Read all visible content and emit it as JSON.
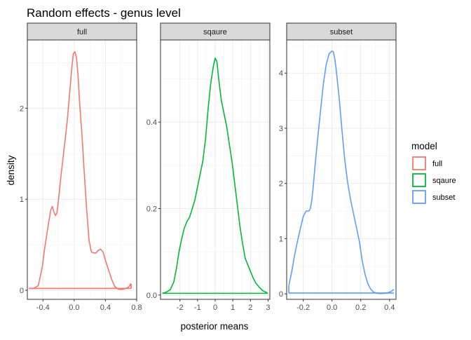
{
  "chart_data": {
    "type": "line",
    "title": "Random effects - genus level",
    "xlabel": "posterior means",
    "ylabel": "density",
    "legend": {
      "title": "model",
      "placement": "right",
      "entries": [
        {
          "name": "full",
          "color": "#F8766D"
        },
        {
          "name": "sqaure",
          "color": "#00BA38"
        },
        {
          "name": "subset",
          "color": "#619CFF"
        }
      ]
    },
    "grid": true,
    "facets": [
      {
        "strip": "full",
        "color": "#F8766D",
        "xlim": [
          -0.6,
          0.8
        ],
        "ylim": [
          -0.1,
          2.75
        ],
        "xticks": [
          -0.4,
          0.0,
          0.4,
          0.8
        ],
        "xtick_labels": [
          "-0.4",
          "0.0",
          "0.4",
          "0.8"
        ],
        "yticks": [
          0,
          1,
          2
        ],
        "ytick_labels": [
          "0",
          "1",
          "2"
        ],
        "x": [
          -0.58,
          -0.52,
          -0.46,
          -0.41,
          -0.38,
          -0.35,
          -0.32,
          -0.3,
          -0.28,
          -0.26,
          -0.24,
          -0.22,
          -0.2,
          -0.17,
          -0.13,
          -0.09,
          -0.06,
          -0.03,
          -0.01,
          0.01,
          0.03,
          0.05,
          0.07,
          0.1,
          0.13,
          0.16,
          0.19,
          0.22,
          0.25,
          0.28,
          0.31,
          0.34,
          0.37,
          0.4,
          0.44,
          0.48,
          0.52,
          0.57,
          0.62,
          0.66,
          0.69,
          0.71,
          0.72,
          0.73
        ],
        "y": [
          0.02,
          0.02,
          0.05,
          0.25,
          0.45,
          0.62,
          0.78,
          0.88,
          0.92,
          0.86,
          0.82,
          0.85,
          1.0,
          1.25,
          1.55,
          1.85,
          2.15,
          2.45,
          2.6,
          2.62,
          2.55,
          2.35,
          2.05,
          1.7,
          1.28,
          0.88,
          0.55,
          0.42,
          0.41,
          0.41,
          0.44,
          0.45,
          0.42,
          0.33,
          0.22,
          0.12,
          0.04,
          0.01,
          0.01,
          0.02,
          0.03,
          0.05,
          0.07,
          0.03
        ],
        "segments": [
          [
            -0.58,
            0.02,
            0.73,
            0.02
          ],
          [
            0.73,
            0.02,
            0.73,
            0.07
          ]
        ]
      },
      {
        "strip": "sqaure",
        "color": "#00BA38",
        "xlim": [
          -3.1,
          3.1
        ],
        "ylim": [
          -0.01,
          0.59
        ],
        "xticks": [
          -2,
          -1,
          0,
          1,
          2,
          3
        ],
        "xtick_labels": [
          "-2",
          "-1",
          "0",
          "1",
          "2",
          "3"
        ],
        "yticks": [
          0.0,
          0.2,
          0.4
        ],
        "ytick_labels": [
          "0.0",
          "0.2",
          "0.4"
        ],
        "x": [
          -3.0,
          -2.8,
          -2.55,
          -2.35,
          -2.2,
          -2.05,
          -1.9,
          -1.75,
          -1.6,
          -1.45,
          -1.3,
          -1.15,
          -1.0,
          -0.85,
          -0.7,
          -0.55,
          -0.4,
          -0.25,
          -0.1,
          0.0,
          0.1,
          0.2,
          0.35,
          0.5,
          0.65,
          0.8,
          0.95,
          1.1,
          1.25,
          1.4,
          1.55,
          1.7,
          1.85,
          2.0,
          2.15,
          2.3,
          2.5,
          2.7,
          2.9,
          2.98
        ],
        "y": [
          0.004,
          0.006,
          0.012,
          0.03,
          0.06,
          0.1,
          0.13,
          0.155,
          0.17,
          0.18,
          0.2,
          0.22,
          0.25,
          0.28,
          0.31,
          0.36,
          0.43,
          0.49,
          0.53,
          0.548,
          0.54,
          0.5,
          0.45,
          0.42,
          0.39,
          0.35,
          0.31,
          0.26,
          0.21,
          0.16,
          0.12,
          0.085,
          0.07,
          0.055,
          0.04,
          0.028,
          0.018,
          0.01,
          0.006,
          0.004
        ],
        "segments": [
          [
            -3.0,
            0.004,
            2.98,
            0.004
          ]
        ]
      },
      {
        "strip": "subset",
        "color": "#619CFF",
        "xlim": [
          -0.315,
          0.445
        ],
        "ylim": [
          -0.1,
          4.6
        ],
        "xticks": [
          -0.2,
          0.0,
          0.2,
          0.4
        ],
        "xtick_labels": [
          "-0.2",
          "0.0",
          "0.2",
          "0.4"
        ],
        "yticks": [
          0,
          1,
          2,
          3,
          4
        ],
        "ytick_labels": [
          "0",
          "1",
          "2",
          "3",
          "4"
        ],
        "x": [
          -0.3,
          -0.28,
          -0.26,
          -0.24,
          -0.22,
          -0.2,
          -0.18,
          -0.16,
          -0.15,
          -0.14,
          -0.13,
          -0.12,
          -0.1,
          -0.08,
          -0.06,
          -0.04,
          -0.02,
          0.0,
          0.01,
          0.02,
          0.03,
          0.05,
          0.07,
          0.09,
          0.11,
          0.13,
          0.15,
          0.17,
          0.19,
          0.21,
          0.23,
          0.25,
          0.27,
          0.29,
          0.31,
          0.34,
          0.37,
          0.4,
          0.42,
          0.43
        ],
        "y": [
          0.15,
          0.4,
          0.7,
          0.95,
          1.18,
          1.4,
          1.5,
          1.5,
          1.55,
          1.7,
          1.95,
          2.25,
          2.8,
          3.3,
          3.8,
          4.15,
          4.35,
          4.4,
          4.38,
          4.25,
          4.05,
          3.55,
          2.95,
          2.4,
          2.0,
          1.7,
          1.45,
          1.2,
          0.95,
          0.6,
          0.35,
          0.18,
          0.08,
          0.03,
          0.01,
          0.005,
          0.01,
          0.03,
          0.06,
          0.08
        ],
        "segments": [
          [
            -0.3,
            0.015,
            0.43,
            0.015
          ],
          [
            -0.3,
            0.015,
            -0.3,
            0.15
          ]
        ]
      }
    ]
  }
}
